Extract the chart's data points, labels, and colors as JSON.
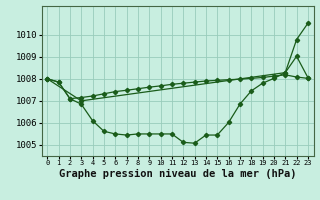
{
  "xlabel": "Graphe pression niveau de la mer (hPa)",
  "background_color": "#c8eee0",
  "grid_color": "#99ccbb",
  "line_color": "#1a5c1a",
  "hours": [
    0,
    1,
    2,
    3,
    4,
    5,
    6,
    7,
    8,
    9,
    10,
    11,
    12,
    13,
    14,
    15,
    16,
    17,
    18,
    19,
    20,
    21,
    22,
    23
  ],
  "line1_y": [
    1008.0,
    1007.85,
    1007.1,
    1007.15,
    1007.22,
    1007.32,
    1007.42,
    1007.48,
    1007.55,
    1007.62,
    1007.68,
    1007.75,
    1007.8,
    1007.85,
    1007.9,
    1007.93,
    1007.96,
    1007.98,
    1008.02,
    1008.06,
    1008.12,
    1008.18,
    1008.08,
    1008.02
  ],
  "line2_y": [
    1008.0,
    1007.85,
    1007.1,
    1006.85,
    1006.1,
    1005.62,
    1005.5,
    1005.45,
    1005.5,
    1005.5,
    1005.5,
    1005.5,
    1005.12,
    1005.08,
    1005.45,
    1005.45,
    1006.02,
    1006.85,
    1007.45,
    1007.8,
    1008.02,
    1008.28,
    1009.02,
    1008.05
  ],
  "line3_x": [
    0,
    3,
    21,
    22,
    23
  ],
  "line3_y": [
    1008.0,
    1007.0,
    1008.28,
    1009.78,
    1010.52
  ],
  "ylim": [
    1004.5,
    1011.3
  ],
  "yticks": [
    1005,
    1006,
    1007,
    1008,
    1009,
    1010
  ],
  "ytick_labels": [
    "1005",
    "1006",
    "1007",
    "1008",
    "1009",
    "1010"
  ],
  "xlim": [
    -0.5,
    23.5
  ],
  "tick_fontsize": 6.5,
  "label_fontsize": 7.5,
  "marker_size": 2.2,
  "line_width": 0.9
}
